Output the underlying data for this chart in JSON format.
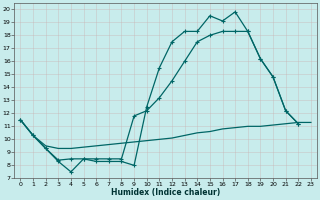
{
  "xlabel": "Humidex (Indice chaleur)",
  "bg_color": "#c8ecec",
  "grid_color": "#d4e8e8",
  "line_color": "#006666",
  "xlim": [
    -0.5,
    23.5
  ],
  "ylim": [
    7,
    20.5
  ],
  "xticks": [
    0,
    1,
    2,
    3,
    4,
    5,
    6,
    7,
    8,
    9,
    10,
    11,
    12,
    13,
    14,
    15,
    16,
    17,
    18,
    19,
    20,
    21,
    22,
    23
  ],
  "yticks": [
    7,
    8,
    9,
    10,
    11,
    12,
    13,
    14,
    15,
    16,
    17,
    18,
    19,
    20
  ],
  "line1_x": [
    0,
    1,
    2,
    3,
    4,
    5,
    6,
    7,
    8,
    9,
    10,
    11,
    12,
    13,
    14,
    15,
    16,
    17,
    18,
    19,
    20,
    21,
    22
  ],
  "line1_y": [
    11.5,
    10.3,
    9.3,
    8.3,
    7.5,
    8.5,
    8.3,
    8.3,
    8.3,
    8.0,
    12.5,
    15.5,
    17.5,
    18.3,
    18.3,
    19.5,
    19.1,
    19.8,
    18.3,
    16.2,
    14.8,
    12.2,
    11.2
  ],
  "line2_x": [
    0,
    1,
    2,
    3,
    4,
    5,
    6,
    7,
    8,
    9,
    10,
    11,
    12,
    13,
    14,
    15,
    16,
    17,
    18,
    19,
    20,
    21,
    22
  ],
  "line2_y": [
    11.5,
    10.3,
    9.3,
    8.4,
    8.5,
    8.5,
    8.5,
    8.5,
    8.5,
    11.8,
    12.2,
    13.2,
    14.5,
    16.0,
    17.5,
    18.0,
    18.3,
    18.3,
    18.3,
    16.2,
    14.8,
    12.2,
    11.2
  ],
  "line3_x": [
    0,
    1,
    2,
    3,
    4,
    5,
    6,
    7,
    8,
    9,
    10,
    11,
    12,
    13,
    14,
    15,
    16,
    17,
    18,
    19,
    20,
    21,
    22,
    23
  ],
  "line3_y": [
    11.5,
    10.3,
    9.5,
    9.3,
    9.3,
    9.4,
    9.5,
    9.6,
    9.7,
    9.8,
    9.9,
    10.0,
    10.1,
    10.3,
    10.5,
    10.6,
    10.8,
    10.9,
    11.0,
    11.0,
    11.1,
    11.2,
    11.3,
    11.3
  ]
}
